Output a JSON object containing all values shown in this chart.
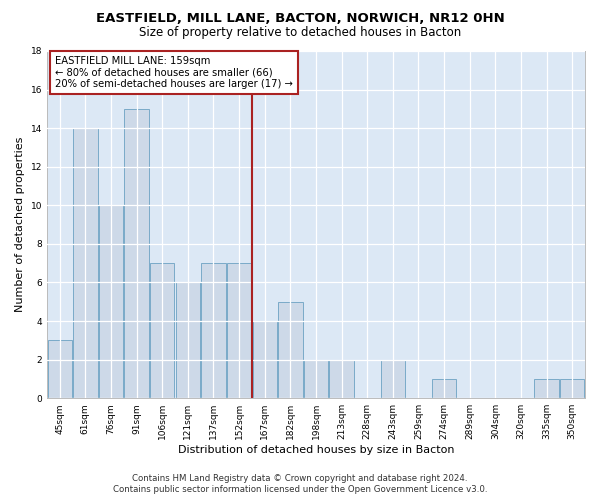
{
  "title": "EASTFIELD, MILL LANE, BACTON, NORWICH, NR12 0HN",
  "subtitle": "Size of property relative to detached houses in Bacton",
  "xlabel": "Distribution of detached houses by size in Bacton",
  "ylabel": "Number of detached properties",
  "categories": [
    "45sqm",
    "61sqm",
    "76sqm",
    "91sqm",
    "106sqm",
    "121sqm",
    "137sqm",
    "152sqm",
    "167sqm",
    "182sqm",
    "198sqm",
    "213sqm",
    "228sqm",
    "243sqm",
    "259sqm",
    "274sqm",
    "289sqm",
    "304sqm",
    "320sqm",
    "335sqm",
    "350sqm"
  ],
  "values": [
    3,
    14,
    10,
    15,
    7,
    6,
    7,
    7,
    4,
    5,
    2,
    2,
    0,
    2,
    0,
    1,
    0,
    0,
    0,
    1,
    1
  ],
  "bar_color": "#cdd9e8",
  "bar_edge_color": "#7aaac8",
  "background_color": "#dce8f5",
  "grid_color": "#ffffff",
  "vline_x": 7.5,
  "vline_color": "#aa2222",
  "annotation_title": "EASTFIELD MILL LANE: 159sqm",
  "annotation_line1": "← 80% of detached houses are smaller (66)",
  "annotation_line2": "20% of semi-detached houses are larger (17) →",
  "annotation_box_color": "#ffffff",
  "annotation_edge_color": "#aa2222",
  "ylim": [
    0,
    18
  ],
  "yticks": [
    0,
    2,
    4,
    6,
    8,
    10,
    12,
    14,
    16,
    18
  ],
  "footer_line1": "Contains HM Land Registry data © Crown copyright and database right 2024.",
  "footer_line2": "Contains public sector information licensed under the Open Government Licence v3.0.",
  "fig_facecolor": "#ffffff",
  "title_fontsize": 9.5,
  "subtitle_fontsize": 8.5,
  "axis_label_fontsize": 8,
  "tick_fontsize": 6.5,
  "annotation_fontsize": 7.2,
  "footer_fontsize": 6.2
}
